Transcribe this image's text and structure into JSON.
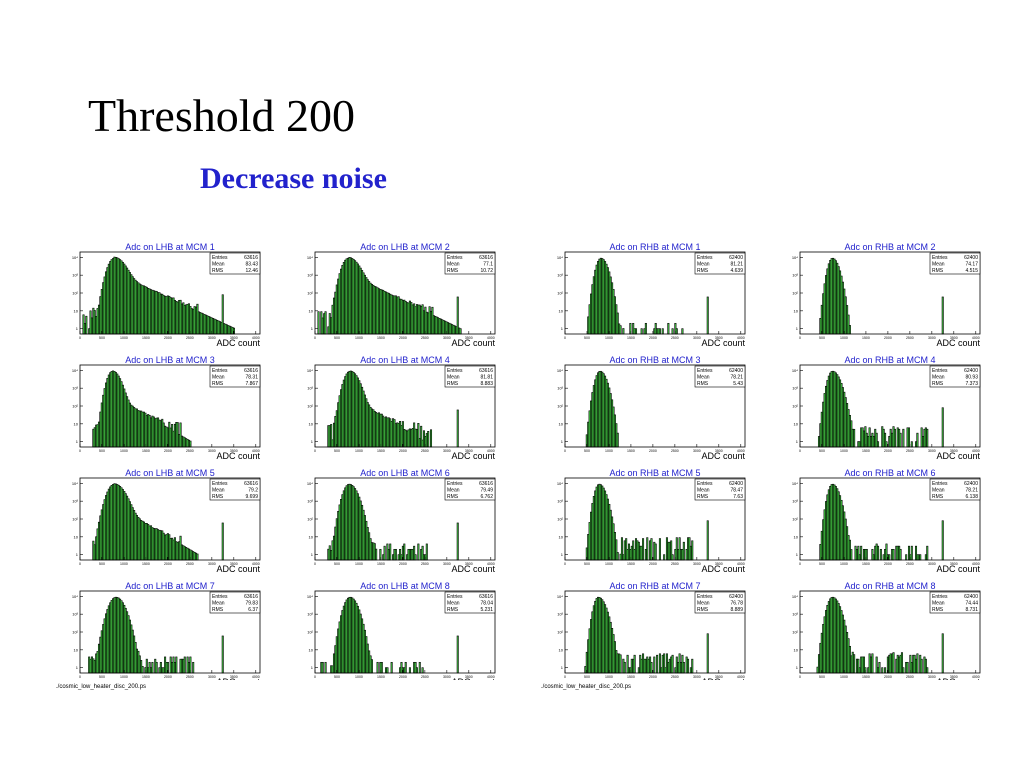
{
  "title": "Threshold 200",
  "subtitle": "Decrease noise",
  "file_label_left": "./cosmic_low_heater_disc_200.ps",
  "file_label_right": "./cosmic_low_heater_disc_200.ps",
  "style": {
    "fill_color": "#44cc44",
    "title_color": "#2222cc"
  },
  "chart_data": [
    {
      "type": "bar",
      "title": "Adc on LHB at MCM 1",
      "xlabel": "ADC count",
      "ylabel": "",
      "log_y": true,
      "xlim": [
        0,
        4096
      ],
      "stats": {
        "Entries": "63616",
        "Mean": "83.43",
        "RMS": "12.46"
      },
      "shape": {
        "peak_x": 780,
        "peak_y": 9000,
        "sigma_left": 100,
        "sigma_right": 165,
        "tail_amp": 1400,
        "tail_decay": 380,
        "noise_lo": 60,
        "noise_hi": 2700,
        "noise_level": 6,
        "spike_x": 3250,
        "spike_y": 80
      }
    },
    {
      "type": "bar",
      "title": "Adc on LHB at MCM 2",
      "xlabel": "ADC count",
      "ylabel": "",
      "log_y": true,
      "xlim": [
        0,
        4096
      ],
      "stats": {
        "Entries": "63616",
        "Mean": "77.1",
        "RMS": "10.72"
      },
      "shape": {
        "peak_x": 760,
        "peak_y": 9000,
        "sigma_left": 100,
        "sigma_right": 160,
        "tail_amp": 1200,
        "tail_decay": 360,
        "noise_lo": 60,
        "noise_hi": 2700,
        "noise_level": 5,
        "spike_x": 3250,
        "spike_y": 60
      }
    },
    {
      "type": "bar",
      "title": "Adc on RHB at MCM 1",
      "xlabel": "ADC count",
      "ylabel": "",
      "log_y": true,
      "xlim": [
        0,
        4096
      ],
      "stats": {
        "Entries": "62400",
        "Mean": "81.21",
        "RMS": "4.639"
      },
      "shape": {
        "peak_x": 820,
        "peak_y": 9000,
        "sigma_left": 75,
        "sigma_right": 100,
        "tail_amp": 0,
        "tail_decay": 200,
        "noise_lo": 1100,
        "noise_hi": 2700,
        "noise_level": 1,
        "spike_x": 3250,
        "spike_y": 60
      }
    },
    {
      "type": "bar",
      "title": "Adc on RHB at MCM 2",
      "xlabel": "ADC count",
      "ylabel": "",
      "log_y": true,
      "xlim": [
        0,
        4096
      ],
      "stats": {
        "Entries": "62400",
        "Mean": "74.17",
        "RMS": "4.515"
      },
      "shape": {
        "peak_x": 740,
        "peak_y": 9000,
        "sigma_left": 70,
        "sigma_right": 95,
        "tail_amp": 0,
        "tail_decay": 200,
        "noise_lo": 1100,
        "noise_hi": 2700,
        "noise_level": 0,
        "spike_x": 3250,
        "spike_y": 60
      }
    },
    {
      "type": "bar",
      "title": "Adc on LHB at MCM 3",
      "xlabel": "ADC count",
      "ylabel": "",
      "log_y": true,
      "xlim": [
        0,
        4096
      ],
      "stats": {
        "Entries": "63616",
        "Mean": "78.31",
        "RMS": "7.867"
      },
      "shape": {
        "peak_x": 740,
        "peak_y": 9000,
        "sigma_left": 85,
        "sigma_right": 120,
        "tail_amp": 400,
        "tail_decay": 300,
        "noise_lo": 300,
        "noise_hi": 2300,
        "noise_level": 4,
        "spike_x": 3200,
        "spike_y": 60
      }
    },
    {
      "type": "bar",
      "title": "Adc on LHB at MCM 4",
      "xlabel": "ADC count",
      "ylabel": "",
      "log_y": true,
      "xlim": [
        0,
        4096
      ],
      "stats": {
        "Entries": "63616",
        "Mean": "81.81",
        "RMS": "8.883"
      },
      "shape": {
        "peak_x": 800,
        "peak_y": 9000,
        "sigma_left": 95,
        "sigma_right": 130,
        "tail_amp": 300,
        "tail_decay": 300,
        "noise_lo": 300,
        "noise_hi": 2700,
        "noise_level": 4,
        "spike_x": 3250,
        "spike_y": 60
      }
    },
    {
      "type": "bar",
      "title": "Adc on RHB at MCM 3",
      "xlabel": "ADC count",
      "ylabel": "",
      "log_y": true,
      "xlim": [
        0,
        4096
      ],
      "stats": {
        "Entries": "62400",
        "Mean": "78.21",
        "RMS": "5.43"
      },
      "shape": {
        "peak_x": 800,
        "peak_y": 9000,
        "sigma_left": 75,
        "sigma_right": 100,
        "tail_amp": 0,
        "tail_decay": 200,
        "noise_lo": 1100,
        "noise_hi": 1100,
        "noise_level": 0,
        "spike_x": 3250,
        "spike_y": 0
      }
    },
    {
      "type": "bar",
      "title": "Adc on RHB at MCM 4",
      "xlabel": "ADC count",
      "ylabel": "",
      "log_y": true,
      "xlim": [
        0,
        4096
      ],
      "stats": {
        "Entries": "62400",
        "Mean": "80.93",
        "RMS": "7.373"
      },
      "shape": {
        "peak_x": 740,
        "peak_y": 9000,
        "sigma_left": 75,
        "sigma_right": 115,
        "tail_amp": 0,
        "tail_decay": 200,
        "noise_lo": 1000,
        "noise_hi": 2900,
        "noise_level": 3,
        "spike_x": 3250,
        "spike_y": 80
      }
    },
    {
      "type": "bar",
      "title": "Adc on LHB at MCM 5",
      "xlabel": "ADC count",
      "ylabel": "",
      "log_y": true,
      "xlim": [
        0,
        4096
      ],
      "stats": {
        "Entries": "63616",
        "Mean": "79.2",
        "RMS": "9.699"
      },
      "shape": {
        "peak_x": 780,
        "peak_y": 9000,
        "sigma_left": 110,
        "sigma_right": 160,
        "tail_amp": 600,
        "tail_decay": 300,
        "noise_lo": 300,
        "noise_hi": 2300,
        "noise_level": 3,
        "spike_x": 3250,
        "spike_y": 60
      }
    },
    {
      "type": "bar",
      "title": "Adc on LHB at MCM 6",
      "xlabel": "ADC count",
      "ylabel": "",
      "log_y": true,
      "xlim": [
        0,
        4096
      ],
      "stats": {
        "Entries": "63616",
        "Mean": "79.49",
        "RMS": "6.762"
      },
      "shape": {
        "peak_x": 780,
        "peak_y": 9000,
        "sigma_left": 95,
        "sigma_right": 125,
        "tail_amp": 0,
        "tail_decay": 200,
        "noise_lo": 250,
        "noise_hi": 2600,
        "noise_level": 2,
        "spike_x": 3250,
        "spike_y": 60
      }
    },
    {
      "type": "bar",
      "title": "Adc on RHB at MCM 5",
      "xlabel": "ADC count",
      "ylabel": "",
      "log_y": true,
      "xlim": [
        0,
        4096
      ],
      "stats": {
        "Entries": "62400",
        "Mean": "78.47",
        "RMS": "7.63"
      },
      "shape": {
        "peak_x": 780,
        "peak_y": 9000,
        "sigma_left": 70,
        "sigma_right": 100,
        "tail_amp": 0,
        "tail_decay": 200,
        "noise_lo": 1000,
        "noise_hi": 2900,
        "noise_level": 4,
        "spike_x": 3250,
        "spike_y": 80
      }
    },
    {
      "type": "bar",
      "title": "Adc on RHB at MCM 6",
      "xlabel": "ADC count",
      "ylabel": "",
      "log_y": true,
      "xlim": [
        0,
        4096
      ],
      "stats": {
        "Entries": "62400",
        "Mean": "78.21",
        "RMS": "6.138"
      },
      "shape": {
        "peak_x": 740,
        "peak_y": 9000,
        "sigma_left": 70,
        "sigma_right": 100,
        "tail_amp": 0,
        "tail_decay": 200,
        "noise_lo": 1000,
        "noise_hi": 2900,
        "noise_level": 2,
        "spike_x": 3250,
        "spike_y": 80
      }
    },
    {
      "type": "bar",
      "title": "Adc on LHB at MCM 7",
      "xlabel": "ADC count",
      "ylabel": "",
      "log_y": true,
      "xlim": [
        0,
        4096
      ],
      "stats": {
        "Entries": "63616",
        "Mean": "79.83",
        "RMS": "6.37"
      },
      "shape": {
        "peak_x": 820,
        "peak_y": 9000,
        "sigma_left": 110,
        "sigma_right": 130,
        "tail_amp": 0,
        "tail_decay": 200,
        "noise_lo": 200,
        "noise_hi": 2600,
        "noise_level": 2,
        "spike_x": 3250,
        "spike_y": 60
      }
    },
    {
      "type": "bar",
      "title": "Adc on LHB at MCM 8",
      "xlabel": "ADC count",
      "ylabel": "",
      "log_y": true,
      "xlim": [
        0,
        4096
      ],
      "stats": {
        "Entries": "63616",
        "Mean": "78.04",
        "RMS": "5.231"
      },
      "shape": {
        "peak_x": 800,
        "peak_y": 9000,
        "sigma_left": 95,
        "sigma_right": 115,
        "tail_amp": 0,
        "tail_decay": 200,
        "noise_lo": 100,
        "noise_hi": 2600,
        "noise_level": 1,
        "spike_x": 3250,
        "spike_y": 60
      }
    },
    {
      "type": "bar",
      "title": "Adc on RHB at MCM 7",
      "xlabel": "ADC count",
      "ylabel": "",
      "log_y": true,
      "xlim": [
        0,
        4096
      ],
      "stats": {
        "Entries": "62400",
        "Mean": "76.78",
        "RMS": "8.889"
      },
      "shape": {
        "peak_x": 760,
        "peak_y": 9000,
        "sigma_left": 70,
        "sigma_right": 110,
        "tail_amp": 0,
        "tail_decay": 200,
        "noise_lo": 1000,
        "noise_hi": 2900,
        "noise_level": 3,
        "spike_x": 3250,
        "spike_y": 80
      }
    },
    {
      "type": "bar",
      "title": "Adc on RHB at MCM 8",
      "xlabel": "ADC count",
      "ylabel": "",
      "log_y": true,
      "xlim": [
        0,
        4096
      ],
      "stats": {
        "Entries": "62400",
        "Mean": "74.44",
        "RMS": "8.731"
      },
      "shape": {
        "peak_x": 740,
        "peak_y": 9000,
        "sigma_left": 80,
        "sigma_right": 110,
        "tail_amp": 0,
        "tail_decay": 200,
        "noise_lo": 1000,
        "noise_hi": 2900,
        "noise_level": 3,
        "spike_x": 3250,
        "spike_y": 80
      }
    }
  ]
}
